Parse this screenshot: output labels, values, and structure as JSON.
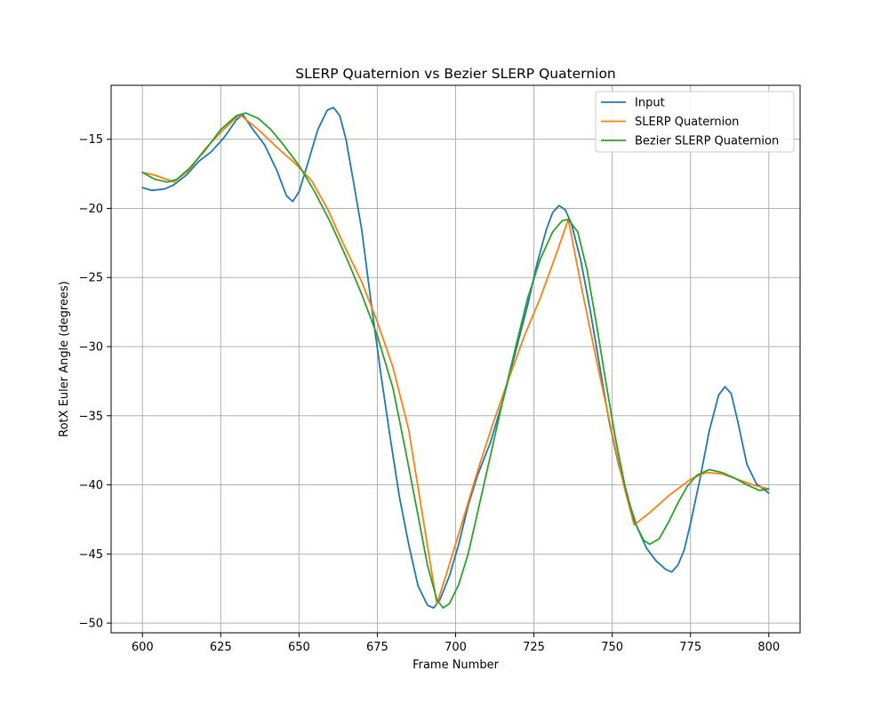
{
  "chart_data": {
    "type": "line",
    "title": "SLERP Quaternion vs Bezier SLERP Quaternion",
    "xlabel": "Frame Number",
    "ylabel": "RotX Euler Angle (degrees)",
    "xlim": [
      590,
      810
    ],
    "ylim": [
      -50.7,
      -11.1
    ],
    "xticks": [
      600,
      625,
      650,
      675,
      700,
      725,
      750,
      775,
      800
    ],
    "yticks": [
      -50,
      -45,
      -40,
      -35,
      -30,
      -25,
      -20,
      -15
    ],
    "xtick_labels": [
      "600",
      "625",
      "650",
      "675",
      "700",
      "725",
      "750",
      "775",
      "800"
    ],
    "ytick_labels": [
      "−50",
      "−45",
      "−40",
      "−35",
      "−30",
      "−25",
      "−20",
      "−15"
    ],
    "grid": true,
    "legend_position": "top-right",
    "series": [
      {
        "name": "Input",
        "color": "#1f77b4",
        "points": [
          [
            600,
            -18.5
          ],
          [
            603,
            -18.7
          ],
          [
            607,
            -18.6
          ],
          [
            610,
            -18.3
          ],
          [
            614,
            -17.6
          ],
          [
            618,
            -16.6
          ],
          [
            622,
            -15.9
          ],
          [
            626,
            -14.9
          ],
          [
            630,
            -13.6
          ],
          [
            632,
            -13.2
          ],
          [
            635,
            -14.2
          ],
          [
            639,
            -15.4
          ],
          [
            643,
            -17.3
          ],
          [
            646,
            -19.1
          ],
          [
            648,
            -19.5
          ],
          [
            650,
            -18.8
          ],
          [
            653,
            -16.6
          ],
          [
            656,
            -14.3
          ],
          [
            659,
            -12.9
          ],
          [
            661,
            -12.7
          ],
          [
            663,
            -13.3
          ],
          [
            665,
            -15.0
          ],
          [
            667,
            -17.6
          ],
          [
            670,
            -21.5
          ],
          [
            673,
            -26.8
          ],
          [
            676,
            -31.8
          ],
          [
            679,
            -36.4
          ],
          [
            682,
            -40.8
          ],
          [
            685,
            -44.3
          ],
          [
            688,
            -47.3
          ],
          [
            691,
            -48.7
          ],
          [
            693,
            -48.9
          ],
          [
            695,
            -48.3
          ],
          [
            698,
            -46.6
          ],
          [
            701,
            -44.3
          ],
          [
            704,
            -41.5
          ],
          [
            707,
            -39.3
          ],
          [
            711,
            -37.0
          ],
          [
            715,
            -34.0
          ],
          [
            719,
            -30.5
          ],
          [
            723,
            -27.0
          ],
          [
            726,
            -24.0
          ],
          [
            729,
            -21.5
          ],
          [
            731,
            -20.3
          ],
          [
            733,
            -19.8
          ],
          [
            735,
            -20.1
          ],
          [
            737,
            -21.1
          ],
          [
            740,
            -23.8
          ],
          [
            743,
            -27.4
          ],
          [
            746,
            -31.4
          ],
          [
            749,
            -35.4
          ],
          [
            752,
            -38.5
          ],
          [
            755,
            -41.0
          ],
          [
            758,
            -43.1
          ],
          [
            761,
            -44.6
          ],
          [
            764,
            -45.5
          ],
          [
            767,
            -46.1
          ],
          [
            769,
            -46.3
          ],
          [
            771,
            -45.8
          ],
          [
            773,
            -44.7
          ],
          [
            775,
            -42.8
          ],
          [
            778,
            -39.6
          ],
          [
            781,
            -36.1
          ],
          [
            784,
            -33.5
          ],
          [
            786,
            -32.9
          ],
          [
            788,
            -33.4
          ],
          [
            790,
            -35.3
          ],
          [
            793,
            -38.5
          ],
          [
            796,
            -39.9
          ],
          [
            800,
            -40.6
          ]
        ]
      },
      {
        "name": "SLERP Quaternion",
        "color": "#ff7f0e",
        "points": [
          [
            600,
            -17.4
          ],
          [
            604,
            -17.6
          ],
          [
            610,
            -18.1
          ],
          [
            615,
            -17.2
          ],
          [
            620,
            -15.7
          ],
          [
            625,
            -14.5
          ],
          [
            631,
            -13.2
          ],
          [
            637,
            -14.3
          ],
          [
            643,
            -15.6
          ],
          [
            649,
            -16.8
          ],
          [
            654,
            -18.0
          ],
          [
            659,
            -20.0
          ],
          [
            664,
            -22.5
          ],
          [
            670,
            -25.3
          ],
          [
            675,
            -28.2
          ],
          [
            680,
            -31.5
          ],
          [
            685,
            -36.0
          ],
          [
            690,
            -43.0
          ],
          [
            694,
            -48.6
          ],
          [
            697,
            -46.5
          ],
          [
            702,
            -42.8
          ],
          [
            707,
            -39.0
          ],
          [
            712,
            -35.5
          ],
          [
            717,
            -32.3
          ],
          [
            722,
            -29.2
          ],
          [
            727,
            -26.5
          ],
          [
            732,
            -23.4
          ],
          [
            736,
            -20.8
          ],
          [
            740,
            -25.5
          ],
          [
            745,
            -31.0
          ],
          [
            750,
            -36.3
          ],
          [
            754,
            -40.3
          ],
          [
            757,
            -42.9
          ],
          [
            762,
            -42.0
          ],
          [
            768,
            -40.8
          ],
          [
            775,
            -39.6
          ],
          [
            780,
            -39.1
          ],
          [
            785,
            -39.2
          ],
          [
            790,
            -39.6
          ],
          [
            795,
            -40.0
          ],
          [
            800,
            -40.3
          ]
        ]
      },
      {
        "name": "Bezier SLERP Quaternion",
        "color": "#2ca02c",
        "points": [
          [
            600,
            -17.4
          ],
          [
            604,
            -17.9
          ],
          [
            608,
            -18.1
          ],
          [
            611,
            -17.9
          ],
          [
            615,
            -17.1
          ],
          [
            620,
            -15.8
          ],
          [
            625,
            -14.3
          ],
          [
            630,
            -13.3
          ],
          [
            633,
            -13.1
          ],
          [
            637,
            -13.5
          ],
          [
            641,
            -14.3
          ],
          [
            645,
            -15.4
          ],
          [
            650,
            -16.9
          ],
          [
            655,
            -18.8
          ],
          [
            660,
            -21.0
          ],
          [
            665,
            -23.5
          ],
          [
            670,
            -26.2
          ],
          [
            675,
            -29.2
          ],
          [
            680,
            -33.0
          ],
          [
            684,
            -37.5
          ],
          [
            688,
            -42.2
          ],
          [
            691,
            -45.8
          ],
          [
            694,
            -48.3
          ],
          [
            696,
            -48.9
          ],
          [
            698,
            -48.6
          ],
          [
            701,
            -47.2
          ],
          [
            704,
            -45.0
          ],
          [
            707,
            -42.0
          ],
          [
            711,
            -38.0
          ],
          [
            715,
            -34.0
          ],
          [
            719,
            -30.2
          ],
          [
            723,
            -26.5
          ],
          [
            727,
            -23.7
          ],
          [
            731,
            -21.7
          ],
          [
            734,
            -20.9
          ],
          [
            736,
            -20.8
          ],
          [
            739,
            -21.7
          ],
          [
            742,
            -24.5
          ],
          [
            745,
            -28.4
          ],
          [
            748,
            -32.6
          ],
          [
            751,
            -36.6
          ],
          [
            754,
            -40.0
          ],
          [
            757,
            -42.6
          ],
          [
            760,
            -44.0
          ],
          [
            762,
            -44.3
          ],
          [
            765,
            -43.9
          ],
          [
            768,
            -42.7
          ],
          [
            771,
            -41.3
          ],
          [
            774,
            -40.1
          ],
          [
            777,
            -39.3
          ],
          [
            781,
            -38.9
          ],
          [
            785,
            -39.1
          ],
          [
            789,
            -39.5
          ],
          [
            793,
            -40.0
          ],
          [
            797,
            -40.4
          ],
          [
            800,
            -40.3
          ]
        ]
      }
    ]
  }
}
